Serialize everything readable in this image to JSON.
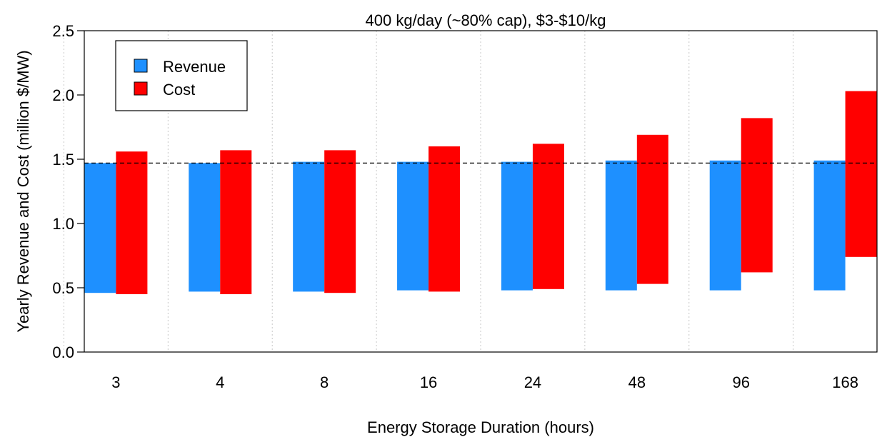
{
  "chart_data": {
    "type": "bar",
    "title": "400 kg/day (~80% cap), $3-$10/kg",
    "xlabel": "Energy Storage Duration (hours)",
    "ylabel": "Yearly Revenue and Cost (million $/MW)",
    "categories": [
      "3",
      "4",
      "8",
      "16",
      "24",
      "48",
      "96",
      "168"
    ],
    "ylim": [
      0,
      2.5
    ],
    "yticks": [
      "0.0",
      "0.5",
      "1.0",
      "1.5",
      "2.0",
      "2.5"
    ],
    "series": [
      {
        "name": "Revenue",
        "color": "#1e90ff",
        "low": [
          0.46,
          0.47,
          0.47,
          0.48,
          0.48,
          0.48,
          0.48,
          0.48
        ],
        "high": [
          1.47,
          1.47,
          1.48,
          1.48,
          1.48,
          1.49,
          1.49,
          1.49
        ]
      },
      {
        "name": "Cost",
        "color": "#ff0000",
        "low": [
          0.45,
          0.45,
          0.46,
          0.47,
          0.49,
          0.53,
          0.62,
          0.74
        ],
        "high": [
          1.56,
          1.57,
          1.57,
          1.6,
          1.62,
          1.69,
          1.82,
          2.03
        ]
      }
    ],
    "reference_line": 1.47,
    "grid": "vertical dotted",
    "legend_position": "top-left"
  }
}
